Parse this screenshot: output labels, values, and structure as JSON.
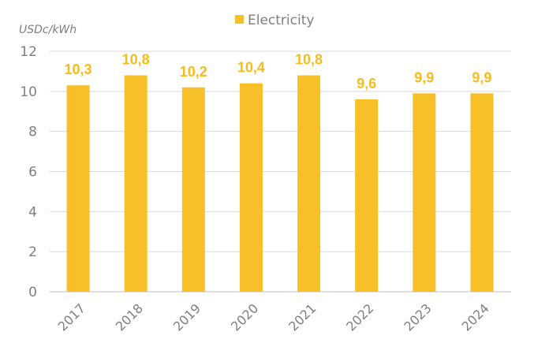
{
  "chart_data": {
    "type": "bar",
    "title": "",
    "xlabel": "",
    "ylabel": "USDc/kWh",
    "ylim": [
      0,
      12
    ],
    "yticks": [
      0,
      2,
      4,
      6,
      8,
      10,
      12
    ],
    "grid": true,
    "legend_placement": "top-center",
    "categories": [
      "2017",
      "2018",
      "2019",
      "2020",
      "2021",
      "2022",
      "2023",
      "2024"
    ],
    "series": [
      {
        "name": "Electricity",
        "color": "#F7BF28",
        "values": [
          10.3,
          10.8,
          10.2,
          10.4,
          10.8,
          9.6,
          9.9,
          9.9
        ],
        "labels": [
          "10,3",
          "10,8",
          "10,2",
          "10,4",
          "10,8",
          "9,6",
          "9,9",
          "9,9"
        ]
      }
    ]
  }
}
